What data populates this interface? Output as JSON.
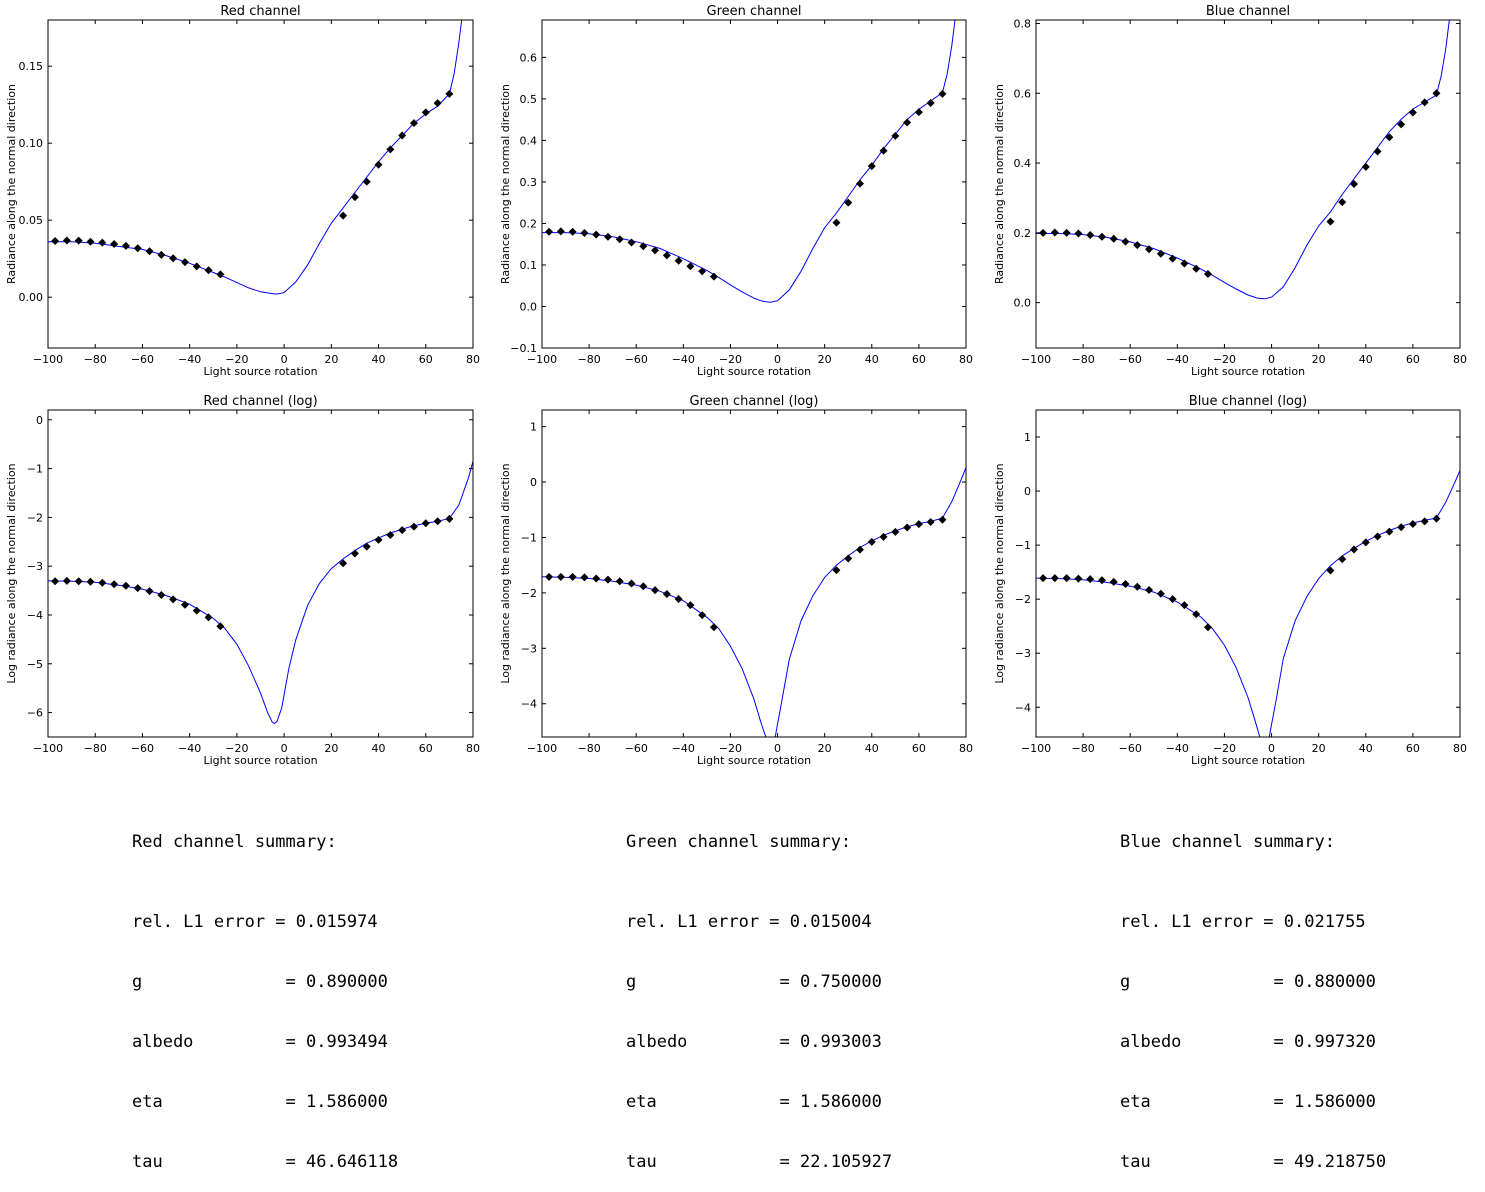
{
  "chart_data": [
    {
      "type": "line",
      "title": "Red channel",
      "xlabel": "Light source rotation",
      "ylabel": "Radiance along the normal direction",
      "xlim": [
        -100,
        80
      ],
      "ylim": [
        -0.033,
        0.18
      ],
      "xticks": [
        -100,
        -80,
        -60,
        -40,
        -20,
        0,
        20,
        40,
        60,
        80
      ],
      "yticks": [
        0.0,
        0.05,
        0.1,
        0.15
      ],
      "ytick_labels": [
        "0.00",
        "0.05",
        "0.10",
        "0.15"
      ],
      "line_color": "#0000ff",
      "marker_color": "#000000",
      "fit_curve": {
        "x": [
          -100,
          -90,
          -80,
          -70,
          -60,
          -50,
          -40,
          -30,
          -25,
          -20,
          -15,
          -10,
          -6,
          -3,
          0,
          5,
          10,
          15,
          20,
          25,
          30,
          35,
          40,
          45,
          50,
          55,
          60,
          65,
          70,
          72,
          74,
          76,
          80
        ],
        "y": [
          0.036,
          0.036,
          0.035,
          0.033,
          0.031,
          0.027,
          0.022,
          0.016,
          0.013,
          0.0095,
          0.006,
          0.0035,
          0.0025,
          0.002,
          0.003,
          0.01,
          0.021,
          0.035,
          0.048,
          0.058,
          0.068,
          0.078,
          0.088,
          0.097,
          0.105,
          0.113,
          0.119,
          0.124,
          0.132,
          0.145,
          0.165,
          0.19,
          0.25
        ]
      },
      "measured": {
        "x": [
          -97,
          -92,
          -87,
          -82,
          -77,
          -72,
          -67,
          -62,
          -57,
          -52,
          -47,
          -42,
          -37,
          -32,
          -27,
          25,
          30,
          35,
          40,
          45,
          50,
          55,
          60,
          65,
          70
        ],
        "y": [
          0.0365,
          0.0368,
          0.0367,
          0.036,
          0.0354,
          0.0345,
          0.0333,
          0.0318,
          0.0298,
          0.0275,
          0.0253,
          0.0228,
          0.02,
          0.0175,
          0.0148,
          0.053,
          0.065,
          0.075,
          0.086,
          0.096,
          0.105,
          0.113,
          0.12,
          0.126,
          0.132
        ]
      }
    },
    {
      "type": "line",
      "title": "Green channel",
      "xlabel": "Light source rotation",
      "ylabel": "Radiance along the normal direction",
      "xlim": [
        -100,
        80
      ],
      "ylim": [
        -0.1,
        0.69
      ],
      "xticks": [
        -100,
        -80,
        -60,
        -40,
        -20,
        0,
        20,
        40,
        60,
        80
      ],
      "yticks": [
        -0.1,
        0.0,
        0.1,
        0.2,
        0.3,
        0.4,
        0.5,
        0.6
      ],
      "ytick_labels": [
        "−0.1",
        "0.0",
        "0.1",
        "0.2",
        "0.3",
        "0.4",
        "0.5",
        "0.6"
      ],
      "line_color": "#0000ff",
      "marker_color": "#000000",
      "fit_curve": {
        "x": [
          -100,
          -90,
          -80,
          -70,
          -60,
          -50,
          -40,
          -30,
          -25,
          -20,
          -15,
          -10,
          -6,
          -3,
          0,
          5,
          10,
          15,
          20,
          25,
          30,
          35,
          40,
          45,
          50,
          55,
          60,
          65,
          70,
          72,
          74,
          76,
          80
        ],
        "y": [
          0.178,
          0.178,
          0.175,
          0.168,
          0.156,
          0.14,
          0.115,
          0.087,
          0.07,
          0.052,
          0.035,
          0.02,
          0.012,
          0.01,
          0.014,
          0.04,
          0.085,
          0.14,
          0.19,
          0.225,
          0.265,
          0.305,
          0.34,
          0.38,
          0.415,
          0.45,
          0.475,
          0.495,
          0.515,
          0.56,
          0.63,
          0.72,
          0.9
        ]
      },
      "measured": {
        "x": [
          -97,
          -92,
          -87,
          -82,
          -77,
          -72,
          -67,
          -62,
          -57,
          -52,
          -47,
          -42,
          -37,
          -32,
          -27,
          25,
          30,
          35,
          40,
          45,
          50,
          55,
          60,
          65,
          70
        ],
        "y": [
          0.18,
          0.181,
          0.18,
          0.177,
          0.173,
          0.168,
          0.162,
          0.154,
          0.145,
          0.135,
          0.123,
          0.11,
          0.097,
          0.085,
          0.072,
          0.202,
          0.25,
          0.296,
          0.338,
          0.375,
          0.411,
          0.443,
          0.468,
          0.49,
          0.512
        ]
      }
    },
    {
      "type": "line",
      "title": "Blue channel",
      "xlabel": "Light source rotation",
      "ylabel": "Radiance along the normal direction",
      "xlim": [
        -100,
        80
      ],
      "ylim": [
        -0.13,
        0.81
      ],
      "xticks": [
        -100,
        -80,
        -60,
        -40,
        -20,
        0,
        20,
        40,
        60,
        80
      ],
      "yticks": [
        0.0,
        0.2,
        0.4,
        0.6,
        0.8
      ],
      "ytick_labels": [
        "0.0",
        "0.2",
        "0.4",
        "0.6",
        "0.8"
      ],
      "line_color": "#0000ff",
      "marker_color": "#000000",
      "fit_curve": {
        "x": [
          -100,
          -90,
          -80,
          -70,
          -60,
          -50,
          -40,
          -30,
          -25,
          -20,
          -15,
          -10,
          -6,
          -3,
          0,
          5,
          10,
          15,
          20,
          25,
          30,
          35,
          40,
          45,
          50,
          55,
          60,
          65,
          70,
          72,
          74,
          76,
          80
        ],
        "y": [
          0.198,
          0.198,
          0.195,
          0.187,
          0.174,
          0.155,
          0.128,
          0.096,
          0.078,
          0.058,
          0.039,
          0.022,
          0.013,
          0.011,
          0.016,
          0.045,
          0.1,
          0.165,
          0.22,
          0.26,
          0.31,
          0.355,
          0.4,
          0.445,
          0.49,
          0.525,
          0.555,
          0.575,
          0.595,
          0.65,
          0.73,
          0.84,
          1.05
        ]
      },
      "measured": {
        "x": [
          -97,
          -92,
          -87,
          -82,
          -77,
          -72,
          -67,
          -62,
          -57,
          -52,
          -47,
          -42,
          -37,
          -32,
          -27,
          25,
          30,
          35,
          40,
          45,
          50,
          55,
          60,
          65,
          70
        ],
        "y": [
          0.2,
          0.201,
          0.2,
          0.198,
          0.194,
          0.189,
          0.183,
          0.175,
          0.165,
          0.153,
          0.14,
          0.126,
          0.112,
          0.097,
          0.082,
          0.232,
          0.288,
          0.34,
          0.389,
          0.433,
          0.474,
          0.511,
          0.545,
          0.574,
          0.6
        ]
      }
    },
    {
      "type": "line",
      "title": "Red channel (log)",
      "xlabel": "Light source rotation",
      "ylabel": "Log radiance along the normal direction",
      "xlim": [
        -100,
        80
      ],
      "ylim": [
        -6.5,
        0.2
      ],
      "xticks": [
        -100,
        -80,
        -60,
        -40,
        -20,
        0,
        20,
        40,
        60,
        80
      ],
      "yticks": [
        -6,
        -5,
        -4,
        -3,
        -2,
        -1,
        0
      ],
      "ytick_labels": [
        "−6",
        "−5",
        "−4",
        "−3",
        "−2",
        "−1",
        "0"
      ],
      "line_color": "#0000ff",
      "marker_color": "#000000",
      "fit_curve": {
        "x": [
          -100,
          -90,
          -80,
          -70,
          -60,
          -50,
          -40,
          -30,
          -25,
          -20,
          -15,
          -10,
          -7,
          -5,
          -4,
          -3,
          -1,
          2,
          5,
          10,
          15,
          20,
          25,
          30,
          35,
          40,
          45,
          50,
          55,
          60,
          65,
          70,
          74,
          78,
          80
        ],
        "y": [
          -3.3,
          -3.31,
          -3.33,
          -3.39,
          -3.47,
          -3.6,
          -3.78,
          -4.07,
          -4.28,
          -4.6,
          -5.05,
          -5.6,
          -6.0,
          -6.2,
          -6.22,
          -6.18,
          -5.9,
          -5.1,
          -4.5,
          -3.8,
          -3.35,
          -3.05,
          -2.85,
          -2.68,
          -2.53,
          -2.42,
          -2.32,
          -2.24,
          -2.17,
          -2.12,
          -2.08,
          -2.02,
          -1.75,
          -1.2,
          -0.85
        ]
      },
      "measured": {
        "x": [
          -97,
          -92,
          -87,
          -82,
          -77,
          -72,
          -67,
          -62,
          -57,
          -52,
          -47,
          -42,
          -37,
          -32,
          -27,
          25,
          30,
          35,
          40,
          45,
          50,
          55,
          60,
          65,
          70
        ],
        "y": [
          -3.31,
          -3.3,
          -3.31,
          -3.32,
          -3.34,
          -3.37,
          -3.4,
          -3.45,
          -3.51,
          -3.59,
          -3.68,
          -3.79,
          -3.91,
          -4.05,
          -4.23,
          -2.94,
          -2.74,
          -2.6,
          -2.46,
          -2.36,
          -2.26,
          -2.19,
          -2.12,
          -2.08,
          -2.03
        ]
      }
    },
    {
      "type": "line",
      "title": "Green channel (log)",
      "xlabel": "Light source rotation",
      "ylabel": "Log radiance along the normal direction",
      "xlim": [
        -100,
        80
      ],
      "ylim": [
        -4.6,
        1.3
      ],
      "xticks": [
        -100,
        -80,
        -60,
        -40,
        -20,
        0,
        20,
        40,
        60,
        80
      ],
      "yticks": [
        -4,
        -3,
        -2,
        -1,
        0,
        1
      ],
      "ytick_labels": [
        "−4",
        "−3",
        "−2",
        "−1",
        "0",
        "1"
      ],
      "line_color": "#0000ff",
      "marker_color": "#000000",
      "fit_curve": {
        "x": [
          -100,
          -90,
          -80,
          -70,
          -60,
          -50,
          -40,
          -30,
          -25,
          -20,
          -15,
          -10,
          -7,
          -5,
          -4,
          -3,
          -2,
          -1,
          2,
          5,
          10,
          15,
          20,
          25,
          30,
          35,
          40,
          45,
          50,
          55,
          60,
          65,
          70,
          74,
          78,
          80
        ],
        "y": [
          -1.71,
          -1.72,
          -1.74,
          -1.79,
          -1.86,
          -1.97,
          -2.14,
          -2.44,
          -2.64,
          -2.96,
          -3.37,
          -3.92,
          -4.35,
          -4.6,
          -4.6,
          -4.6,
          -4.6,
          -4.6,
          -3.9,
          -3.2,
          -2.5,
          -2.05,
          -1.72,
          -1.5,
          -1.33,
          -1.18,
          -1.06,
          -0.96,
          -0.88,
          -0.81,
          -0.75,
          -0.71,
          -0.65,
          -0.35,
          0.05,
          0.26
        ]
      },
      "measured": {
        "x": [
          -97,
          -92,
          -87,
          -82,
          -77,
          -72,
          -67,
          -62,
          -57,
          -52,
          -47,
          -42,
          -37,
          -32,
          -27,
          25,
          30,
          35,
          40,
          45,
          50,
          55,
          60,
          65,
          70
        ],
        "y": [
          -1.71,
          -1.71,
          -1.71,
          -1.72,
          -1.74,
          -1.76,
          -1.79,
          -1.83,
          -1.88,
          -1.95,
          -2.02,
          -2.11,
          -2.22,
          -2.4,
          -2.62,
          -1.59,
          -1.38,
          -1.22,
          -1.08,
          -0.99,
          -0.9,
          -0.82,
          -0.76,
          -0.72,
          -0.68
        ]
      }
    },
    {
      "type": "line",
      "title": "Blue channel (log)",
      "xlabel": "Light source rotation",
      "ylabel": "Log radiance along the normal direction",
      "xlim": [
        -100,
        80
      ],
      "ylim": [
        -4.55,
        1.5
      ],
      "xticks": [
        -100,
        -80,
        -60,
        -40,
        -20,
        0,
        20,
        40,
        60,
        80
      ],
      "yticks": [
        -4,
        -3,
        -2,
        -1,
        0,
        1
      ],
      "ytick_labels": [
        "−4",
        "−3",
        "−2",
        "−1",
        "0",
        "1"
      ],
      "line_color": "#0000ff",
      "marker_color": "#000000",
      "fit_curve": {
        "x": [
          -100,
          -90,
          -80,
          -70,
          -60,
          -50,
          -40,
          -30,
          -25,
          -20,
          -15,
          -10,
          -7,
          -5,
          -4,
          -3,
          -2,
          -1,
          2,
          5,
          10,
          15,
          20,
          25,
          30,
          35,
          40,
          45,
          50,
          55,
          60,
          65,
          70,
          74,
          78,
          80
        ],
        "y": [
          -1.61,
          -1.62,
          -1.64,
          -1.69,
          -1.76,
          -1.87,
          -2.05,
          -2.33,
          -2.55,
          -2.85,
          -3.27,
          -3.82,
          -4.25,
          -4.55,
          -4.55,
          -4.55,
          -4.55,
          -4.55,
          -3.85,
          -3.1,
          -2.4,
          -1.95,
          -1.62,
          -1.38,
          -1.2,
          -1.06,
          -0.93,
          -0.82,
          -0.73,
          -0.65,
          -0.59,
          -0.54,
          -0.5,
          -0.2,
          0.18,
          0.38
        ]
      },
      "measured": {
        "x": [
          -97,
          -92,
          -87,
          -82,
          -77,
          -72,
          -67,
          -62,
          -57,
          -52,
          -47,
          -42,
          -37,
          -32,
          -27,
          25,
          30,
          35,
          40,
          45,
          50,
          55,
          60,
          65,
          70
        ],
        "y": [
          -1.61,
          -1.61,
          -1.61,
          -1.62,
          -1.63,
          -1.65,
          -1.68,
          -1.72,
          -1.77,
          -1.83,
          -1.9,
          -2.0,
          -2.11,
          -2.28,
          -2.52,
          -1.47,
          -1.26,
          -1.08,
          -0.95,
          -0.84,
          -0.75,
          -0.67,
          -0.61,
          -0.56,
          -0.51
        ]
      }
    }
  ],
  "summaries": [
    {
      "title": "Red channel summary:",
      "rows": [
        "rel. L1 error = 0.015974",
        "g              = 0.890000",
        "albedo         = 0.993494",
        "eta            = 1.586000",
        "tau            = 46.646118"
      ]
    },
    {
      "title": "Green channel summary:",
      "rows": [
        "rel. L1 error = 0.015004",
        "g              = 0.750000",
        "albedo         = 0.993003",
        "eta            = 1.586000",
        "tau            = 22.105927"
      ]
    },
    {
      "title": "Blue channel summary:",
      "rows": [
        "rel. L1 error = 0.021755",
        "g              = 0.880000",
        "albedo         = 0.997320",
        "eta            = 1.586000",
        "tau            = 49.218750"
      ]
    }
  ]
}
